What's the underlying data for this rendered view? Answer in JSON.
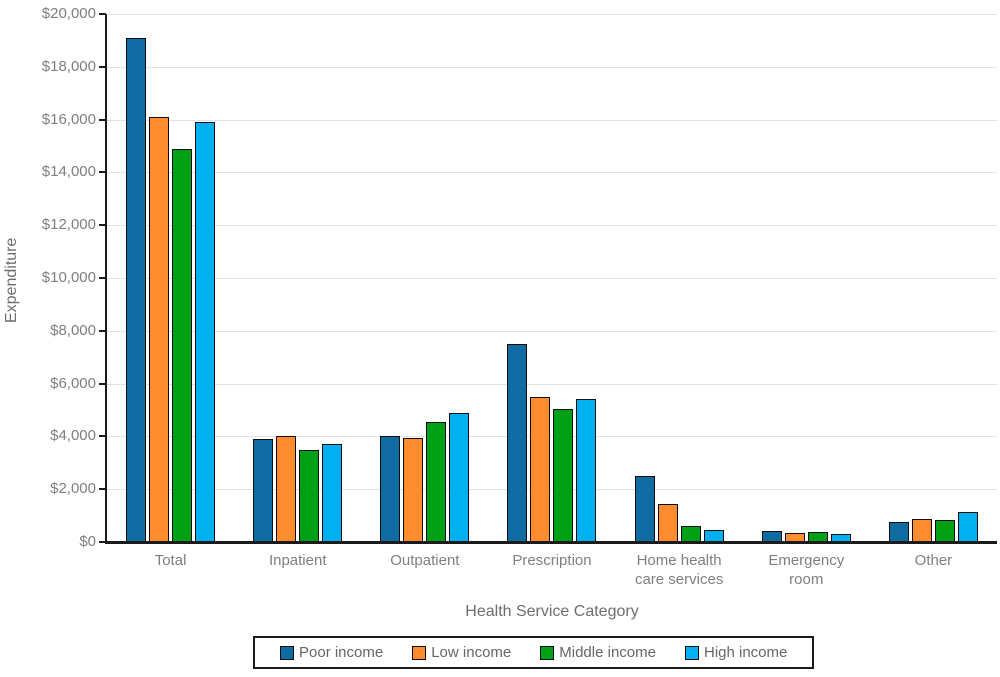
{
  "chart_data": {
    "type": "bar",
    "title": "",
    "xlabel": "Health Service Category",
    "ylabel": "Expenditure",
    "ylim": [
      0,
      20000
    ],
    "y_tick_step": 2000,
    "y_tick_labels": [
      "$0",
      "$2,000",
      "$4,000",
      "$6,000",
      "$8,000",
      "$10,000",
      "$12,000",
      "$14,000",
      "$16,000",
      "$18,000",
      "$20,000"
    ],
    "grid": true,
    "legend_position": "bottom",
    "categories": [
      {
        "label": "Total",
        "lines": [
          "Total"
        ]
      },
      {
        "label": "Inpatient",
        "lines": [
          "Inpatient"
        ]
      },
      {
        "label": "Outpatient",
        "lines": [
          "Outpatient"
        ]
      },
      {
        "label": "Prescription",
        "lines": [
          "Prescription"
        ]
      },
      {
        "label": "Home health care services",
        "lines": [
          "Home health",
          "care services"
        ]
      },
      {
        "label": "Emergency room",
        "lines": [
          "Emergency",
          "room"
        ]
      },
      {
        "label": "Other",
        "lines": [
          "Other"
        ]
      }
    ],
    "series": [
      {
        "name": "Poor income",
        "color": "#0F6BA2",
        "values": [
          19100,
          3900,
          4000,
          7500,
          2500,
          400,
          750
        ]
      },
      {
        "name": "Low income",
        "color": "#FF8C2E",
        "values": [
          16100,
          4000,
          3950,
          5500,
          1450,
          330,
          875
        ]
      },
      {
        "name": "Middle income",
        "color": "#00A014",
        "values": [
          14900,
          3500,
          4550,
          5050,
          600,
          380,
          850
        ]
      },
      {
        "name": "High income",
        "color": "#00B0F0",
        "values": [
          15900,
          3700,
          4900,
          5400,
          450,
          300,
          1150
        ]
      }
    ]
  },
  "style_colors": {
    "axis": "#1a1a1a",
    "gridline": "#e2e2e2",
    "tick_text": "#7f7f7f",
    "title_text": "#6e6e6e",
    "legend_text": "#666666"
  }
}
